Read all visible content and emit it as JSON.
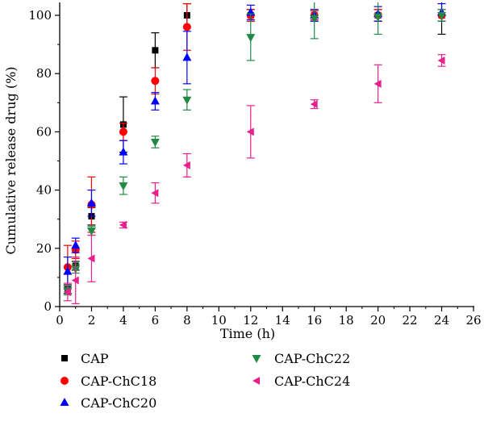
{
  "chart_data": {
    "type": "scatter",
    "xlabel": "Time (h)",
    "ylabel": "Cumulative release drug (%)",
    "xlim": [
      0,
      26
    ],
    "ylim": [
      0,
      100
    ],
    "x_ticks": [
      0,
      2,
      4,
      6,
      8,
      10,
      12,
      14,
      16,
      18,
      20,
      22,
      24,
      26
    ],
    "y_ticks": [
      0,
      20,
      40,
      60,
      80,
      100
    ],
    "grid": false,
    "legend_position": "bottom",
    "series": [
      {
        "name": "CAP",
        "color": "#000000",
        "marker": "square",
        "x": [
          0.5,
          1,
          2,
          4,
          6,
          8,
          12,
          16,
          20,
          24
        ],
        "y": [
          6,
          14,
          31,
          62.5,
          88,
          100,
          100,
          100,
          100,
          100
        ],
        "err": [
          1.5,
          1.5,
          3,
          9.5,
          6,
          4,
          2,
          2,
          2,
          6.5
        ]
      },
      {
        "name": "CAP-ChC18",
        "color": "#ff0000",
        "marker": "circle",
        "x": [
          0.5,
          1,
          2,
          4,
          6,
          8,
          12,
          16,
          20,
          24
        ],
        "y": [
          13.5,
          19.5,
          35,
          60,
          77.5,
          96,
          100,
          100,
          100,
          100
        ],
        "err": [
          7.5,
          3,
          9.5,
          3,
          4.5,
          8,
          2,
          1.5,
          2,
          2
        ]
      },
      {
        "name": "CAP-ChC20",
        "color": "#0000ff",
        "marker": "triangle-up",
        "x": [
          0.5,
          1,
          2,
          4,
          6,
          8,
          12,
          16,
          20,
          24
        ],
        "y": [
          12,
          21,
          35.5,
          53,
          70.5,
          85.5,
          101,
          100,
          100.5,
          101
        ],
        "err": [
          5,
          2.5,
          4.5,
          4,
          3,
          9,
          2.5,
          2,
          2.5,
          3
        ]
      },
      {
        "name": "CAP-ChC22",
        "color": "#1e8a44",
        "marker": "triangle-down",
        "x": [
          0.5,
          1,
          2,
          4,
          6,
          8,
          12,
          16,
          20,
          24
        ],
        "y": [
          5.5,
          13,
          26,
          41.5,
          56.5,
          71,
          92.5,
          99,
          99.5,
          100
        ],
        "err": [
          1.5,
          1.5,
          1.5,
          3,
          2,
          3.5,
          8,
          7,
          6,
          2
        ]
      },
      {
        "name": "CAP-ChC24",
        "color": "#e8208c",
        "marker": "triangle-left",
        "x": [
          0.5,
          1,
          2,
          4,
          6,
          8,
          12,
          16,
          20,
          24
        ],
        "y": [
          5,
          9,
          16.5,
          28,
          39,
          48.5,
          60,
          69.5,
          76.5,
          84.5
        ],
        "err": [
          3,
          8,
          8,
          1,
          3.5,
          4,
          9,
          1.5,
          6.5,
          2
        ]
      }
    ]
  }
}
